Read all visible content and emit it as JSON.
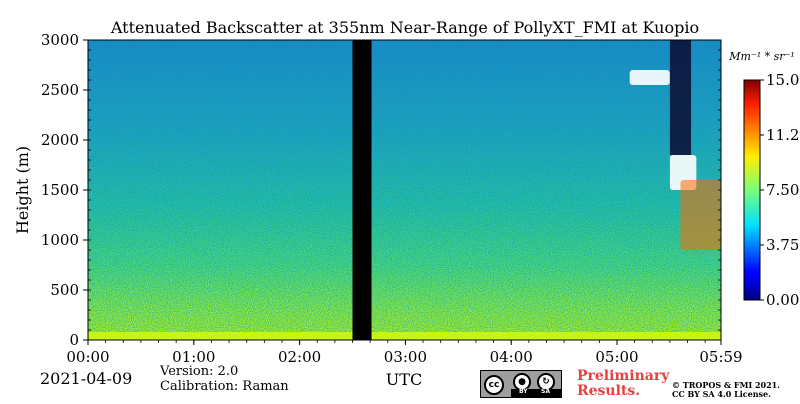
{
  "chart_data": {
    "type": "heatmap",
    "title": "Attenuated Backscatter at 355nm Near-Range of PollyXT_FMI at Kuopio",
    "xlabel": "UTC",
    "ylabel": "Height (m)",
    "x_ticks": [
      "00:00",
      "01:00",
      "02:00",
      "03:00",
      "04:00",
      "05:00",
      "05:59"
    ],
    "x_tick_values_hours": [
      0,
      1,
      2,
      3,
      4,
      5,
      5.983
    ],
    "xlim_hours": [
      0,
      5.983
    ],
    "y_ticks": [
      "0",
      "500",
      "1000",
      "1500",
      "2000",
      "2500",
      "3000"
    ],
    "y_tick_values": [
      0,
      500,
      1000,
      1500,
      2000,
      2500,
      3000
    ],
    "ylim": [
      0,
      3000
    ],
    "colorbar": {
      "unit_label": "Mm⁻¹ * sr⁻¹",
      "ticks": [
        "0.00",
        "3.75",
        "7.50",
        "11.25",
        "15.00"
      ],
      "tick_values": [
        0,
        3.75,
        7.5,
        11.25,
        15
      ],
      "range": [
        0,
        15
      ],
      "colormap": "jet"
    },
    "data_gap_hours": [
      2.5,
      2.68
    ],
    "overlap_blank_height_m": [
      0,
      80
    ],
    "cloud_features": [
      {
        "time_hours": [
          5.12,
          5.5
        ],
        "height_m": [
          2550,
          2700
        ]
      },
      {
        "time_hours": [
          5.5,
          5.75
        ],
        "height_m": [
          1500,
          1850
        ]
      },
      {
        "time_hours": [
          5.6,
          5.98
        ],
        "height_m": [
          900,
          1600
        ]
      }
    ],
    "description_background": "Near-surface values ~7.5 Mm-1 sr-1 decreasing with height to ~3 Mm-1 sr-1 near 3000 m; noise increases with height."
  },
  "footer": {
    "date": "2021-04-09",
    "version": "Version: 2.0",
    "calibration": "Calibration: Raman",
    "utc": "UTC",
    "preliminary_line1": "Preliminary",
    "preliminary_line2": "Results.",
    "copyright_line1": "© TROPOS & FMI 2021.",
    "copyright_line2": "CC BY SA 4.0 License.",
    "license_badge": {
      "cc": "cc",
      "by": "BY",
      "sa": "SA"
    }
  },
  "colors": {
    "preliminary": "#e83f3f",
    "gap": "#000000"
  }
}
